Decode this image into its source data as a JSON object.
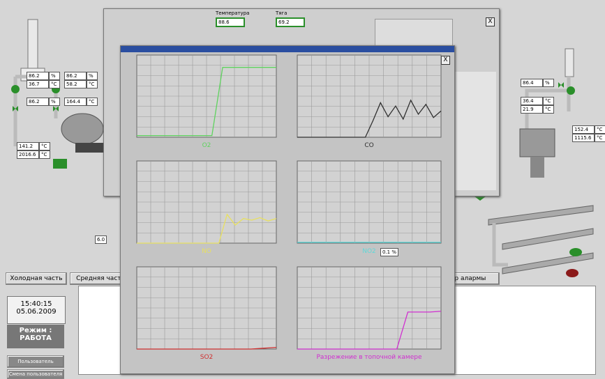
{
  "left_values": [
    {
      "value": "86.2",
      "unit": "%"
    },
    {
      "value": "36.7",
      "unit": "°C"
    },
    {
      "value": "86.2",
      "unit": "%"
    },
    {
      "value": "58.2",
      "unit": "°C"
    },
    {
      "value": "86.2",
      "unit": "%"
    },
    {
      "value": "164.4",
      "unit": "°C"
    },
    {
      "value": "141.2",
      "unit": "°C"
    },
    {
      "value": "2016.6",
      "unit": "°C"
    }
  ],
  "right_values": [
    {
      "value": "86.4",
      "unit": "%"
    },
    {
      "value": "36.4",
      "unit": "°C"
    },
    {
      "value": "21.9",
      "unit": "°C"
    },
    {
      "value": "152.4",
      "unit": "°C"
    },
    {
      "value": "1115.6",
      "unit": "°C"
    }
  ],
  "back_window": {
    "fields": [
      {
        "label": "Температура",
        "value": "88.6"
      },
      {
        "label": "Тяга",
        "value": "69.2"
      }
    ]
  },
  "small_value": "6.0",
  "probe_value": "0.1 %",
  "buttons": [
    "Холодная часть",
    "Средняя часть",
    "Монитор алармы"
  ],
  "status": {
    "time": "15:40:15",
    "date": "05.06.2009",
    "mode_label": "Режим :",
    "mode": "РАБОТА",
    "user_button": "Пользователь",
    "change_user": "Смена пользователя"
  },
  "trend_window": {
    "ylim": [
      0,
      100
    ],
    "trends": [
      {
        "name": "O2",
        "color": "#5fd35f",
        "values": [
          2,
          2,
          2,
          2,
          2,
          2,
          2,
          2,
          85,
          85,
          85,
          85,
          85,
          85
        ]
      },
      {
        "name": "CO",
        "color": "#303030",
        "values": [
          0,
          0,
          0,
          0,
          0,
          0,
          0,
          0,
          0,
          0,
          20,
          42,
          25,
          38,
          22,
          45,
          28,
          40,
          24,
          32
        ]
      },
      {
        "name": "NO",
        "color": "#e8e060",
        "values": [
          0,
          0,
          0,
          0,
          0,
          0,
          0,
          0,
          0,
          0,
          0,
          35,
          22,
          30,
          28,
          31,
          27,
          30
        ]
      },
      {
        "name": "NO2",
        "color": "#60d8d8",
        "values": [
          1,
          1,
          1,
          1,
          1,
          1,
          1,
          1,
          1,
          1,
          1,
          1
        ]
      },
      {
        "name": "SO2",
        "color": "#d03030",
        "values": [
          0,
          0,
          0,
          0,
          0,
          0,
          0,
          0,
          0,
          0,
          1,
          2
        ]
      },
      {
        "name": "Разрежение в топочной камере",
        "color": "#d030d0",
        "values": [
          0,
          0,
          0,
          0,
          0,
          0,
          0,
          0,
          0,
          0,
          45,
          45,
          45,
          46
        ]
      }
    ]
  }
}
